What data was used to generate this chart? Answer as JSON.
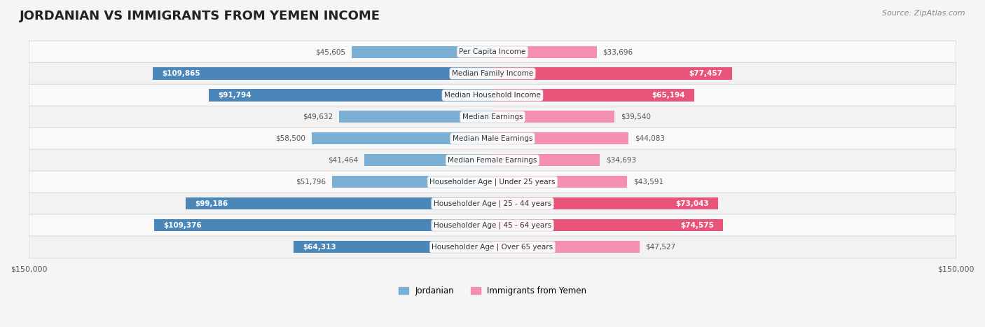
{
  "title": "JORDANIAN VS IMMIGRANTS FROM YEMEN INCOME",
  "source": "Source: ZipAtlas.com",
  "categories": [
    "Per Capita Income",
    "Median Family Income",
    "Median Household Income",
    "Median Earnings",
    "Median Male Earnings",
    "Median Female Earnings",
    "Householder Age | Under 25 years",
    "Householder Age | 25 - 44 years",
    "Householder Age | 45 - 64 years",
    "Householder Age | Over 65 years"
  ],
  "jordanian_values": [
    45605,
    109865,
    91794,
    49632,
    58500,
    41464,
    51796,
    99186,
    109376,
    64313
  ],
  "yemen_values": [
    33696,
    77457,
    65194,
    39540,
    44083,
    34693,
    43591,
    73043,
    74575,
    47527
  ],
  "jordanian_labels": [
    "$45,605",
    "$109,865",
    "$91,794",
    "$49,632",
    "$58,500",
    "$41,464",
    "$51,796",
    "$99,186",
    "$109,376",
    "$64,313"
  ],
  "yemen_labels": [
    "$33,696",
    "$77,457",
    "$65,194",
    "$39,540",
    "$44,083",
    "$34,693",
    "$43,591",
    "$73,043",
    "$74,575",
    "$47,527"
  ],
  "max_value": 150000,
  "jordanian_color": "#7bafd4",
  "jordan_dark_color": "#4a86b8",
  "yemen_color": "#f48fb1",
  "yemen_dark_color": "#e8547a",
  "bg_color": "#f5f5f5",
  "row_bg_color": "#ffffff",
  "row_alt_bg": "#f0f0f0",
  "legend_jordanian": "Jordanian",
  "legend_yemen": "Immigrants from Yemen",
  "bar_height": 0.55,
  "xlim": 150000
}
